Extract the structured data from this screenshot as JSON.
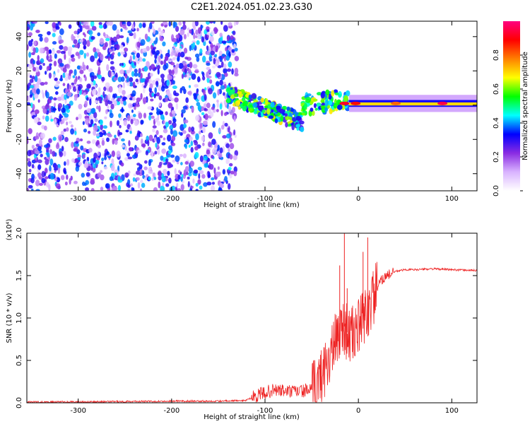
{
  "title": "C2E1.2024.051.02.23.G30",
  "chart_data": [
    {
      "type": "heatmap",
      "xlabel": "Height of straight line (km)",
      "ylabel": "Frequency (Hz)",
      "xlim": [
        -355,
        127
      ],
      "ylim": [
        -50,
        49
      ],
      "xticks": [
        -300,
        -200,
        -100,
        0,
        100
      ],
      "yticks": [
        -40,
        -20,
        0,
        20,
        40
      ],
      "colorbar": {
        "label": "Normalized spectral amplitude",
        "range": [
          0,
          1
        ],
        "ticks": [
          "0.0",
          "0.2",
          "0.4",
          "0.6",
          "0.8"
        ],
        "colors": [
          "#ffffff",
          "#d9b3ff",
          "#8a2be2",
          "#0000ff",
          "#00ffff",
          "#00ff00",
          "#ffff00",
          "#ff8000",
          "#ff0000",
          "#ff0080"
        ]
      },
      "regions": [
        {
          "name": "noise",
          "x": [
            -355,
            -130
          ],
          "y": [
            -50,
            49
          ],
          "level": 0.3
        },
        {
          "name": "diagonal-echo",
          "x": [
            -140,
            -60
          ],
          "y_start": 6,
          "y_end": -10,
          "level": 0.45
        },
        {
          "name": "stable-line",
          "x": [
            -10,
            127
          ],
          "y": [
            -1,
            3
          ],
          "level": 0.7
        }
      ]
    },
    {
      "type": "line",
      "xlabel": "Height of straight line (km)",
      "ylabel": "SNR (10 * v/v)",
      "scale_label": "(x10⁴)",
      "xlim": [
        -355,
        127
      ],
      "ylim": [
        0,
        2.0
      ],
      "xticks": [
        -300,
        -200,
        -100,
        0,
        100
      ],
      "yticks": [
        0.0,
        0.5,
        1.0,
        1.5,
        2.0
      ],
      "ytick_labels": [
        "0.0",
        "0.5",
        "1.0",
        "1.5",
        "2.0"
      ],
      "series": [
        {
          "color": "#ee2222",
          "x": [
            -355,
            -300,
            -250,
            -200,
            -150,
            -120,
            -110,
            -100,
            -90,
            -80,
            -70,
            -60,
            -50,
            -45,
            -40,
            -35,
            -30,
            -25,
            -20,
            -15,
            -10,
            -5,
            0,
            5,
            10,
            15,
            20,
            25,
            30,
            40,
            50,
            60,
            80,
            100,
            127
          ],
          "y": [
            0.01,
            0.01,
            0.015,
            0.02,
            0.02,
            0.03,
            0.08,
            0.12,
            0.15,
            0.14,
            0.13,
            0.14,
            0.15,
            0.2,
            0.3,
            0.45,
            0.55,
            0.7,
            0.85,
            0.9,
            0.78,
            0.82,
            0.88,
            0.98,
            1.08,
            1.22,
            1.35,
            1.45,
            1.5,
            1.55,
            1.57,
            1.57,
            1.58,
            1.57,
            1.56
          ],
          "spikes": [
            [
              -20,
              1.62
            ],
            [
              -15,
              2.0
            ],
            [
              -12,
              1.35
            ],
            [
              5,
              1.78
            ],
            [
              10,
              1.95
            ],
            [
              7,
              1.25
            ]
          ]
        }
      ]
    }
  ]
}
